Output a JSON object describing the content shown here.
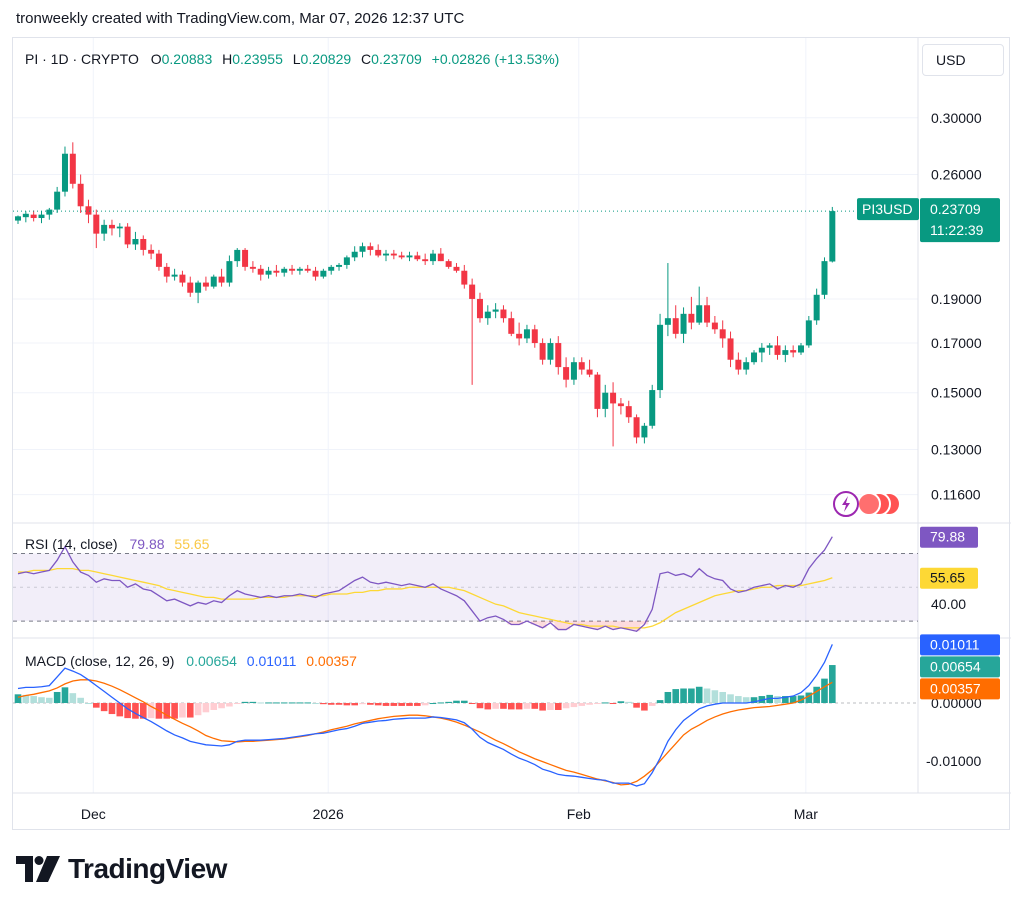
{
  "header": {
    "text": "tronweekly created with TradingView.com, Mar 07, 2026 12:37 UTC"
  },
  "symbol": {
    "name": "PI · 1D · CRYPTO",
    "o_label": "O",
    "o_value": "0.20883",
    "h_label": "H",
    "h_value": "0.23955",
    "l_label": "L",
    "l_value": "0.20829",
    "c_label": "C",
    "c_value": "0.23709",
    "change": "+0.02826 (+13.53%)"
  },
  "currency_button": "USD",
  "price_tag": {
    "ticker": "PI3USD",
    "price": "0.23709",
    "countdown": "11:22:39"
  },
  "rsi_legend": {
    "label": "RSI (14, close)",
    "rsi": "79.88",
    "ma": "55.65"
  },
  "macd_legend": {
    "label": "MACD (close, 12, 26, 9)",
    "hist": "0.00654",
    "macd": "0.01011",
    "signal": "0.00357"
  },
  "logo": {
    "text": "TradingView"
  },
  "colors": {
    "up": "#089981",
    "down": "#f23645",
    "rsi_line": "#7e57c2",
    "rsi_ma": "#fdd835",
    "macd_line": "#2962ff",
    "signal_line": "#ff6d00",
    "hist_up_strong": "#26a69a",
    "hist_up_weak": "#b2dfdb",
    "hist_down_strong": "#ff5252",
    "hist_down_weak": "#ffcdd2"
  },
  "chart_data": {
    "type": "candlestick",
    "symbol": "PI",
    "interval": "1D",
    "x_tick_labels": [
      "Dec",
      "2026",
      "Feb",
      "Mar"
    ],
    "price_axis": {
      "ticks": [
        "0.30000",
        "0.26000",
        "0.19000",
        "0.17000",
        "0.15000",
        "0.13000",
        "0.11600"
      ],
      "scale": "log",
      "range": [
        0.108,
        0.335
      ]
    },
    "last_price": 0.23709,
    "candles": [
      {
        "o": 0.2315,
        "h": 0.2345,
        "l": 0.2295,
        "c": 0.234
      },
      {
        "o": 0.2335,
        "h": 0.237,
        "l": 0.2305,
        "c": 0.2355
      },
      {
        "o": 0.235,
        "h": 0.2375,
        "l": 0.231,
        "c": 0.233
      },
      {
        "o": 0.233,
        "h": 0.237,
        "l": 0.23,
        "c": 0.235
      },
      {
        "o": 0.235,
        "h": 0.239,
        "l": 0.232,
        "c": 0.238
      },
      {
        "o": 0.238,
        "h": 0.252,
        "l": 0.236,
        "c": 0.249
      },
      {
        "o": 0.249,
        "h": 0.279,
        "l": 0.246,
        "c": 0.274
      },
      {
        "o": 0.274,
        "h": 0.282,
        "l": 0.251,
        "c": 0.254
      },
      {
        "o": 0.254,
        "h": 0.26,
        "l": 0.236,
        "c": 0.24
      },
      {
        "o": 0.24,
        "h": 0.244,
        "l": 0.23,
        "c": 0.235
      },
      {
        "o": 0.235,
        "h": 0.238,
        "l": 0.216,
        "c": 0.224
      },
      {
        "o": 0.224,
        "h": 0.232,
        "l": 0.22,
        "c": 0.229
      },
      {
        "o": 0.229,
        "h": 0.232,
        "l": 0.223,
        "c": 0.227
      },
      {
        "o": 0.227,
        "h": 0.23,
        "l": 0.222,
        "c": 0.228
      },
      {
        "o": 0.228,
        "h": 0.23,
        "l": 0.216,
        "c": 0.218
      },
      {
        "o": 0.218,
        "h": 0.225,
        "l": 0.215,
        "c": 0.221
      },
      {
        "o": 0.221,
        "h": 0.223,
        "l": 0.212,
        "c": 0.215
      },
      {
        "o": 0.215,
        "h": 0.218,
        "l": 0.21,
        "c": 0.213
      },
      {
        "o": 0.213,
        "h": 0.215,
        "l": 0.204,
        "c": 0.206
      },
      {
        "o": 0.206,
        "h": 0.208,
        "l": 0.198,
        "c": 0.201
      },
      {
        "o": 0.201,
        "h": 0.205,
        "l": 0.199,
        "c": 0.202
      },
      {
        "o": 0.202,
        "h": 0.204,
        "l": 0.196,
        "c": 0.198
      },
      {
        "o": 0.198,
        "h": 0.201,
        "l": 0.191,
        "c": 0.193
      },
      {
        "o": 0.193,
        "h": 0.199,
        "l": 0.188,
        "c": 0.198
      },
      {
        "o": 0.198,
        "h": 0.201,
        "l": 0.194,
        "c": 0.196
      },
      {
        "o": 0.196,
        "h": 0.202,
        "l": 0.195,
        "c": 0.201
      },
      {
        "o": 0.201,
        "h": 0.205,
        "l": 0.196,
        "c": 0.198
      },
      {
        "o": 0.198,
        "h": 0.212,
        "l": 0.196,
        "c": 0.209
      },
      {
        "o": 0.209,
        "h": 0.216,
        "l": 0.206,
        "c": 0.215
      },
      {
        "o": 0.215,
        "h": 0.216,
        "l": 0.204,
        "c": 0.206
      },
      {
        "o": 0.206,
        "h": 0.209,
        "l": 0.203,
        "c": 0.205
      },
      {
        "o": 0.205,
        "h": 0.207,
        "l": 0.199,
        "c": 0.202
      },
      {
        "o": 0.202,
        "h": 0.206,
        "l": 0.2,
        "c": 0.204
      },
      {
        "o": 0.204,
        "h": 0.207,
        "l": 0.201,
        "c": 0.203
      },
      {
        "o": 0.203,
        "h": 0.206,
        "l": 0.201,
        "c": 0.205
      },
      {
        "o": 0.205,
        "h": 0.207,
        "l": 0.202,
        "c": 0.204
      },
      {
        "o": 0.204,
        "h": 0.206,
        "l": 0.202,
        "c": 0.205
      },
      {
        "o": 0.205,
        "h": 0.207,
        "l": 0.203,
        "c": 0.204
      },
      {
        "o": 0.204,
        "h": 0.206,
        "l": 0.199,
        "c": 0.201
      },
      {
        "o": 0.201,
        "h": 0.205,
        "l": 0.2,
        "c": 0.204
      },
      {
        "o": 0.204,
        "h": 0.207,
        "l": 0.202,
        "c": 0.206
      },
      {
        "o": 0.206,
        "h": 0.208,
        "l": 0.204,
        "c": 0.207
      },
      {
        "o": 0.207,
        "h": 0.212,
        "l": 0.205,
        "c": 0.211
      },
      {
        "o": 0.211,
        "h": 0.217,
        "l": 0.209,
        "c": 0.214
      },
      {
        "o": 0.214,
        "h": 0.219,
        "l": 0.211,
        "c": 0.217
      },
      {
        "o": 0.217,
        "h": 0.219,
        "l": 0.212,
        "c": 0.215
      },
      {
        "o": 0.215,
        "h": 0.218,
        "l": 0.211,
        "c": 0.212
      },
      {
        "o": 0.212,
        "h": 0.215,
        "l": 0.209,
        "c": 0.213
      },
      {
        "o": 0.213,
        "h": 0.215,
        "l": 0.21,
        "c": 0.212
      },
      {
        "o": 0.212,
        "h": 0.214,
        "l": 0.21,
        "c": 0.211
      },
      {
        "o": 0.211,
        "h": 0.214,
        "l": 0.209,
        "c": 0.212
      },
      {
        "o": 0.212,
        "h": 0.214,
        "l": 0.209,
        "c": 0.21
      },
      {
        "o": 0.21,
        "h": 0.213,
        "l": 0.207,
        "c": 0.209
      },
      {
        "o": 0.209,
        "h": 0.215,
        "l": 0.207,
        "c": 0.213
      },
      {
        "o": 0.213,
        "h": 0.216,
        "l": 0.209,
        "c": 0.209
      },
      {
        "o": 0.209,
        "h": 0.21,
        "l": 0.205,
        "c": 0.206
      },
      {
        "o": 0.206,
        "h": 0.208,
        "l": 0.203,
        "c": 0.204
      },
      {
        "o": 0.204,
        "h": 0.207,
        "l": 0.195,
        "c": 0.197
      },
      {
        "o": 0.197,
        "h": 0.2,
        "l": 0.153,
        "c": 0.19
      },
      {
        "o": 0.19,
        "h": 0.193,
        "l": 0.179,
        "c": 0.181
      },
      {
        "o": 0.181,
        "h": 0.187,
        "l": 0.178,
        "c": 0.184
      },
      {
        "o": 0.184,
        "h": 0.188,
        "l": 0.181,
        "c": 0.185
      },
      {
        "o": 0.185,
        "h": 0.187,
        "l": 0.179,
        "c": 0.181
      },
      {
        "o": 0.181,
        "h": 0.184,
        "l": 0.173,
        "c": 0.174
      },
      {
        "o": 0.174,
        "h": 0.179,
        "l": 0.169,
        "c": 0.172
      },
      {
        "o": 0.172,
        "h": 0.178,
        "l": 0.17,
        "c": 0.176
      },
      {
        "o": 0.176,
        "h": 0.178,
        "l": 0.168,
        "c": 0.17
      },
      {
        "o": 0.17,
        "h": 0.172,
        "l": 0.161,
        "c": 0.163
      },
      {
        "o": 0.163,
        "h": 0.172,
        "l": 0.161,
        "c": 0.17
      },
      {
        "o": 0.17,
        "h": 0.173,
        "l": 0.157,
        "c": 0.16
      },
      {
        "o": 0.16,
        "h": 0.164,
        "l": 0.152,
        "c": 0.155
      },
      {
        "o": 0.155,
        "h": 0.164,
        "l": 0.153,
        "c": 0.162
      },
      {
        "o": 0.162,
        "h": 0.164,
        "l": 0.157,
        "c": 0.159
      },
      {
        "o": 0.159,
        "h": 0.163,
        "l": 0.156,
        "c": 0.157
      },
      {
        "o": 0.157,
        "h": 0.158,
        "l": 0.141,
        "c": 0.144
      },
      {
        "o": 0.144,
        "h": 0.153,
        "l": 0.141,
        "c": 0.15
      },
      {
        "o": 0.15,
        "h": 0.154,
        "l": 0.131,
        "c": 0.146
      },
      {
        "o": 0.146,
        "h": 0.148,
        "l": 0.142,
        "c": 0.145
      },
      {
        "o": 0.145,
        "h": 0.147,
        "l": 0.139,
        "c": 0.141
      },
      {
        "o": 0.141,
        "h": 0.142,
        "l": 0.132,
        "c": 0.134
      },
      {
        "o": 0.134,
        "h": 0.139,
        "l": 0.132,
        "c": 0.138
      },
      {
        "o": 0.138,
        "h": 0.153,
        "l": 0.137,
        "c": 0.151
      },
      {
        "o": 0.151,
        "h": 0.183,
        "l": 0.148,
        "c": 0.178
      },
      {
        "o": 0.178,
        "h": 0.208,
        "l": 0.173,
        "c": 0.181
      },
      {
        "o": 0.181,
        "h": 0.187,
        "l": 0.172,
        "c": 0.174
      },
      {
        "o": 0.174,
        "h": 0.186,
        "l": 0.17,
        "c": 0.183
      },
      {
        "o": 0.183,
        "h": 0.191,
        "l": 0.176,
        "c": 0.179
      },
      {
        "o": 0.179,
        "h": 0.196,
        "l": 0.178,
        "c": 0.187
      },
      {
        "o": 0.187,
        "h": 0.191,
        "l": 0.177,
        "c": 0.179
      },
      {
        "o": 0.179,
        "h": 0.182,
        "l": 0.174,
        "c": 0.176
      },
      {
        "o": 0.176,
        "h": 0.18,
        "l": 0.168,
        "c": 0.172
      },
      {
        "o": 0.172,
        "h": 0.175,
        "l": 0.16,
        "c": 0.163
      },
      {
        "o": 0.163,
        "h": 0.166,
        "l": 0.157,
        "c": 0.159
      },
      {
        "o": 0.159,
        "h": 0.164,
        "l": 0.157,
        "c": 0.162
      },
      {
        "o": 0.162,
        "h": 0.167,
        "l": 0.161,
        "c": 0.166
      },
      {
        "o": 0.166,
        "h": 0.17,
        "l": 0.162,
        "c": 0.168
      },
      {
        "o": 0.168,
        "h": 0.17,
        "l": 0.165,
        "c": 0.169
      },
      {
        "o": 0.169,
        "h": 0.173,
        "l": 0.163,
        "c": 0.165
      },
      {
        "o": 0.165,
        "h": 0.169,
        "l": 0.162,
        "c": 0.167
      },
      {
        "o": 0.167,
        "h": 0.169,
        "l": 0.164,
        "c": 0.166
      },
      {
        "o": 0.166,
        "h": 0.17,
        "l": 0.165,
        "c": 0.169
      },
      {
        "o": 0.169,
        "h": 0.182,
        "l": 0.168,
        "c": 0.18
      },
      {
        "o": 0.18,
        "h": 0.195,
        "l": 0.178,
        "c": 0.192
      },
      {
        "o": 0.192,
        "h": 0.211,
        "l": 0.19,
        "c": 0.209
      },
      {
        "o": 0.2088,
        "h": 0.2396,
        "l": 0.2083,
        "c": 0.2371
      }
    ],
    "rsi": {
      "label": "RSI (14, close)",
      "levels": [
        70,
        30
      ],
      "tick_labels": [
        "40.00"
      ],
      "range": [
        20,
        88
      ],
      "rsi_values": [
        58,
        59,
        58,
        59,
        60,
        66,
        74,
        65,
        59,
        57,
        53,
        55,
        54,
        54,
        50,
        52,
        49,
        48,
        45,
        42,
        43,
        41,
        39,
        41,
        40,
        42,
        41,
        45,
        48,
        46,
        45,
        44,
        45,
        44,
        45,
        45,
        46,
        45,
        44,
        46,
        47,
        48,
        51,
        54,
        56,
        53,
        52,
        53,
        52,
        51,
        52,
        51,
        50,
        52,
        49,
        47,
        45,
        42,
        36,
        30,
        32,
        33,
        31,
        28,
        28,
        30,
        28,
        26,
        29,
        25,
        25,
        28,
        27,
        26,
        25,
        27,
        25,
        26,
        25,
        24,
        28,
        37,
        58,
        59,
        57,
        58,
        56,
        61,
        57,
        55,
        54,
        49,
        47,
        48,
        50,
        51,
        52,
        49,
        51,
        50,
        52,
        61,
        67,
        72,
        79.88
      ],
      "ma_values": [
        59,
        59,
        60,
        60,
        60,
        61,
        61,
        61,
        60,
        60,
        59,
        58,
        57,
        56,
        55,
        54,
        53,
        52,
        51,
        49,
        48,
        47,
        46,
        45,
        44,
        44,
        43,
        43,
        43,
        43,
        43,
        44,
        44,
        44,
        44,
        45,
        45,
        45,
        45,
        45,
        46,
        46,
        46,
        47,
        47,
        48,
        48,
        49,
        49,
        49,
        50,
        50,
        50,
        50,
        50,
        50,
        49,
        48,
        46,
        44,
        42,
        40,
        39,
        37,
        35,
        34,
        33,
        32,
        31,
        30,
        29,
        28,
        28,
        27,
        27,
        27,
        27,
        26,
        26,
        26,
        26,
        27,
        29,
        32,
        35,
        37,
        39,
        41,
        43,
        45,
        46,
        47,
        48,
        48,
        49,
        50,
        50,
        51,
        51,
        51,
        51,
        52,
        53,
        54,
        55.65
      ]
    },
    "macd": {
      "label": "MACD (close, 12, 26, 9)",
      "params": [
        12,
        26,
        9
      ],
      "tick_labels": [
        "0.01011",
        "0.00654",
        "0.00357",
        "0.00000",
        "-0.01000"
      ],
      "range": [
        -0.0155,
        0.0112
      ],
      "macd_values": [
        0.0025,
        0.0027,
        0.0027,
        0.0028,
        0.003,
        0.0045,
        0.006,
        0.0055,
        0.0049,
        0.004,
        0.003,
        0.002,
        0.001,
        0.0,
        -0.001,
        -0.0018,
        -0.0025,
        -0.0032,
        -0.004,
        -0.0048,
        -0.0055,
        -0.006,
        -0.0066,
        -0.0069,
        -0.0072,
        -0.0073,
        -0.0074,
        -0.0072,
        -0.0066,
        -0.0064,
        -0.0064,
        -0.0064,
        -0.0063,
        -0.0062,
        -0.0061,
        -0.0059,
        -0.0057,
        -0.0055,
        -0.0053,
        -0.0052,
        -0.0049,
        -0.0046,
        -0.0044,
        -0.004,
        -0.0035,
        -0.0033,
        -0.0031,
        -0.003,
        -0.0028,
        -0.0027,
        -0.0026,
        -0.0026,
        -0.0026,
        -0.0024,
        -0.0025,
        -0.0027,
        -0.0029,
        -0.0034,
        -0.0045,
        -0.0059,
        -0.0068,
        -0.0074,
        -0.008,
        -0.0088,
        -0.0095,
        -0.01,
        -0.0106,
        -0.0114,
        -0.0118,
        -0.0123,
        -0.0125,
        -0.0126,
        -0.0128,
        -0.013,
        -0.0132,
        -0.0133,
        -0.0138,
        -0.0138,
        -0.0138,
        -0.0143,
        -0.0139,
        -0.012,
        -0.0095,
        -0.0066,
        -0.0046,
        -0.003,
        -0.002,
        -0.001,
        -0.0005,
        -0.0002,
        0.0,
        0.0,
        0.0,
        0.0,
        0.0002,
        0.0005,
        0.0008,
        0.0008,
        0.001,
        0.0012,
        0.0018,
        0.003,
        0.0048,
        0.007,
        0.01011
      ],
      "signal_values": [
        0.001,
        0.0013,
        0.0015,
        0.0018,
        0.0021,
        0.0026,
        0.0033,
        0.0038,
        0.004,
        0.004,
        0.0038,
        0.0034,
        0.0029,
        0.0023,
        0.0016,
        0.0009,
        0.0002,
        -0.0006,
        -0.0013,
        -0.0021,
        -0.0028,
        -0.0035,
        -0.0041,
        -0.0048,
        -0.0056,
        -0.0061,
        -0.0065,
        -0.0066,
        -0.0067,
        -0.0066,
        -0.0066,
        -0.0065,
        -0.0064,
        -0.0063,
        -0.0062,
        -0.006,
        -0.0058,
        -0.0056,
        -0.0053,
        -0.005,
        -0.0046,
        -0.0043,
        -0.004,
        -0.0036,
        -0.0033,
        -0.003,
        -0.0027,
        -0.0025,
        -0.0023,
        -0.0022,
        -0.0021,
        -0.0021,
        -0.0022,
        -0.0024,
        -0.0026,
        -0.0029,
        -0.0033,
        -0.0038,
        -0.0044,
        -0.005,
        -0.0057,
        -0.0064,
        -0.007,
        -0.0077,
        -0.0084,
        -0.009,
        -0.0096,
        -0.0101,
        -0.0106,
        -0.0111,
        -0.0116,
        -0.0119,
        -0.0123,
        -0.0127,
        -0.0131,
        -0.0134,
        -0.0137,
        -0.0141,
        -0.014,
        -0.0135,
        -0.0126,
        -0.0115,
        -0.01,
        -0.0085,
        -0.007,
        -0.0055,
        -0.0045,
        -0.0038,
        -0.003,
        -0.0024,
        -0.0019,
        -0.0015,
        -0.0012,
        -0.001,
        -0.0008,
        -0.0007,
        -0.0006,
        -0.0004,
        -0.0002,
        0.0,
        0.0005,
        0.0012,
        0.002,
        0.0028,
        0.00357
      ],
      "hist_values": [
        0.0015,
        0.0014,
        0.0012,
        0.001,
        0.0009,
        0.0019,
        0.0027,
        0.0017,
        0.0009,
        0.0,
        -0.0008,
        -0.0014,
        -0.0019,
        -0.0023,
        -0.0026,
        -0.0027,
        -0.0027,
        -0.0026,
        -0.0027,
        -0.0027,
        -0.0027,
        -0.0025,
        -0.0025,
        -0.0021,
        -0.0016,
        -0.0012,
        -0.0009,
        -0.0006,
        -0.0001,
        0.0002,
        0.0002,
        0.0001,
        0.0001,
        0.0001,
        0.0001,
        0.0001,
        0.0001,
        0.0001,
        0.0,
        -0.0002,
        -0.0003,
        -0.0003,
        -0.0004,
        -0.0004,
        -0.0002,
        -0.0003,
        -0.0004,
        -0.0005,
        -0.0005,
        -0.0005,
        -0.0005,
        -0.0005,
        -0.0004,
        0.0,
        0.0001,
        0.0002,
        0.0004,
        0.0004,
        -0.0001,
        -0.0009,
        -0.0011,
        -0.001,
        -0.001,
        -0.0011,
        -0.0011,
        -0.001,
        -0.001,
        -0.0013,
        -0.0012,
        -0.0012,
        -0.0009,
        -0.0007,
        -0.0005,
        -0.0003,
        -0.0001,
        0.0001,
        -0.0001,
        0.0003,
        0.0002,
        -0.0008,
        -0.0013,
        -0.0005,
        0.0005,
        0.0019,
        0.0024,
        0.0025,
        0.0025,
        0.0028,
        0.0025,
        0.0022,
        0.0019,
        0.0015,
        0.0012,
        0.001,
        0.001,
        0.0012,
        0.0014,
        0.0012,
        0.0012,
        0.0012,
        0.0013,
        0.0018,
        0.0028,
        0.0042,
        0.00654
      ]
    }
  }
}
